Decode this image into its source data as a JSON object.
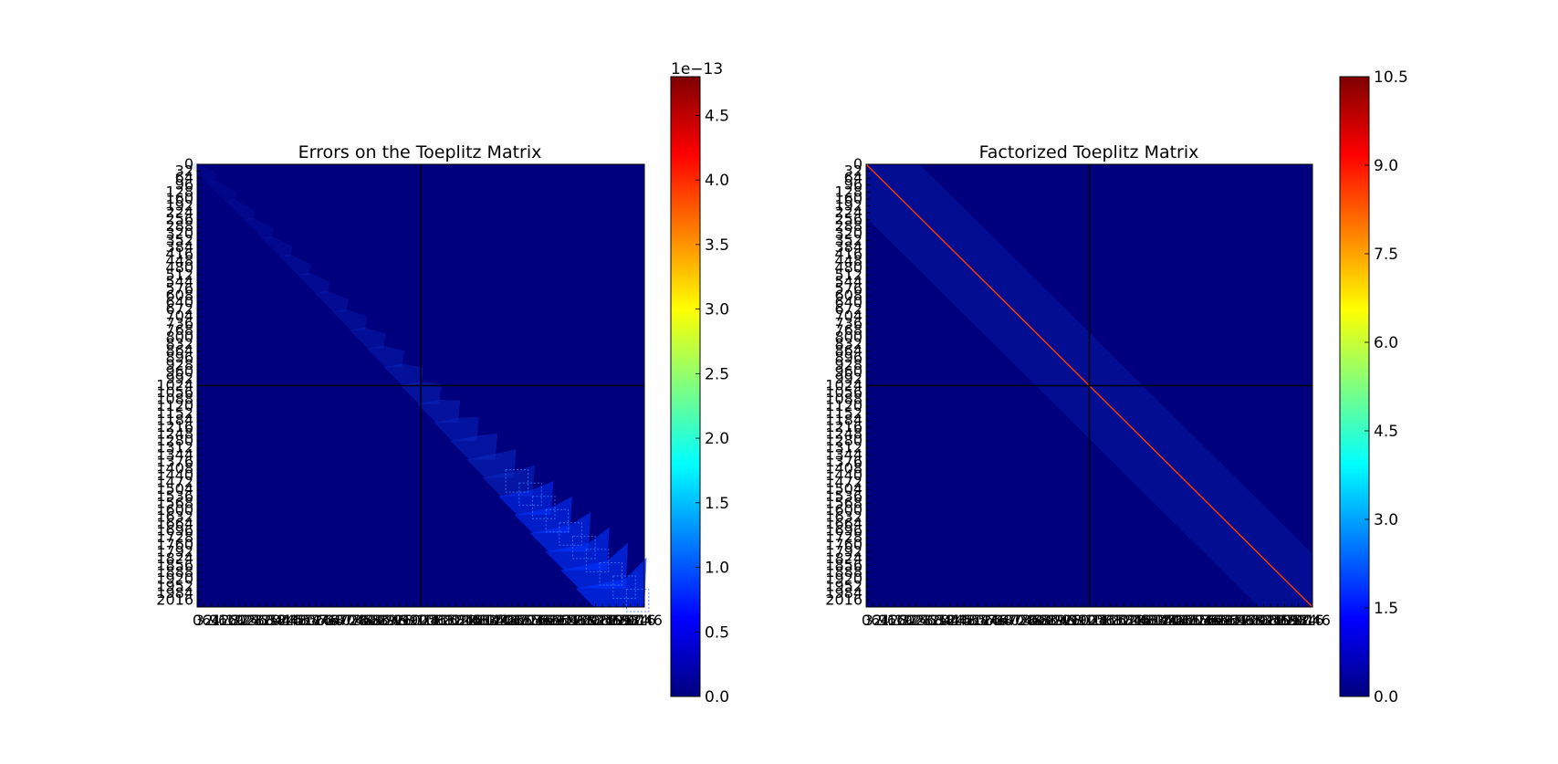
{
  "chart_data": [
    {
      "type": "heatmap",
      "title": "Errors on the Toeplitz Matrix",
      "matrix_size": 2048,
      "x_tick_labels": [
        "0",
        "32",
        "64",
        "96",
        "128",
        "160",
        "192",
        "224",
        "256",
        "288",
        "320",
        "352",
        "384",
        "416",
        "448",
        "480",
        "512",
        "544",
        "576",
        "608",
        "640",
        "672",
        "704",
        "736",
        "768",
        "800",
        "832",
        "864",
        "896",
        "928",
        "960",
        "992",
        "1024",
        "1056",
        "1088",
        "1120",
        "1152",
        "1184",
        "1216",
        "1248",
        "1280",
        "1312",
        "1344",
        "1376",
        "1408",
        "1440",
        "1472",
        "1504",
        "1536",
        "1568",
        "1600",
        "1632",
        "1664",
        "1696",
        "1728",
        "1760",
        "1792",
        "1824",
        "1856",
        "1888",
        "1920",
        "1952",
        "1984",
        "2016",
        "2046"
      ],
      "y_tick_labels": [
        "0",
        "32",
        "64",
        "96",
        "128",
        "160",
        "192",
        "224",
        "256",
        "288",
        "320",
        "352",
        "384",
        "416",
        "448",
        "480",
        "512",
        "544",
        "576",
        "608",
        "640",
        "672",
        "704",
        "736",
        "768",
        "800",
        "832",
        "864",
        "896",
        "928",
        "960",
        "992",
        "1024",
        "1056",
        "1088",
        "1120",
        "1152",
        "1184",
        "1216",
        "1248",
        "1280",
        "1312",
        "1344",
        "1376",
        "1408",
        "1440",
        "1472",
        "1504",
        "1536",
        "1568",
        "1600",
        "1632",
        "1664",
        "1696",
        "1728",
        "1760",
        "1792",
        "1824",
        "1856",
        "1888",
        "1920",
        "1952",
        "1984",
        "2016"
      ],
      "block_divider": 1024,
      "colorbar": {
        "min": 0.0,
        "max": 4.8,
        "ticks": [
          0.0,
          0.5,
          1.0,
          1.5,
          2.0,
          2.5,
          3.0,
          3.5,
          4.0,
          4.5
        ],
        "tick_labels": [
          "0.0",
          "0.5",
          "1.0",
          "1.5",
          "2.0",
          "2.5",
          "3.0",
          "3.5",
          "4.0",
          "4.5"
        ],
        "offset_label": "1e−13",
        "colormap": "jet"
      },
      "pattern": "small errors along main diagonal band, growing toward the bottom-right corner",
      "grid": false
    },
    {
      "type": "heatmap",
      "title": "Factorized Toeplitz Matrix",
      "matrix_size": 2048,
      "x_tick_labels": [
        "0",
        "32",
        "64",
        "96",
        "128",
        "160",
        "192",
        "224",
        "256",
        "288",
        "320",
        "352",
        "384",
        "416",
        "448",
        "480",
        "512",
        "544",
        "576",
        "608",
        "640",
        "672",
        "704",
        "736",
        "768",
        "800",
        "832",
        "864",
        "896",
        "928",
        "960",
        "992",
        "1024",
        "1056",
        "1088",
        "1120",
        "1152",
        "1184",
        "1216",
        "1248",
        "1280",
        "1312",
        "1344",
        "1376",
        "1408",
        "1440",
        "1472",
        "1504",
        "1536",
        "1568",
        "1600",
        "1632",
        "1664",
        "1696",
        "1728",
        "1760",
        "1792",
        "1824",
        "1856",
        "1888",
        "1920",
        "1952",
        "1984",
        "2016",
        "2046"
      ],
      "y_tick_labels": [
        "0",
        "32",
        "64",
        "96",
        "128",
        "160",
        "192",
        "224",
        "256",
        "288",
        "320",
        "352",
        "384",
        "416",
        "448",
        "480",
        "512",
        "544",
        "576",
        "608",
        "640",
        "672",
        "704",
        "736",
        "768",
        "800",
        "832",
        "864",
        "896",
        "928",
        "960",
        "992",
        "1024",
        "1056",
        "1088",
        "1120",
        "1152",
        "1184",
        "1216",
        "1248",
        "1280",
        "1312",
        "1344",
        "1376",
        "1408",
        "1440",
        "1472",
        "1504",
        "1536",
        "1568",
        "1600",
        "1632",
        "1664",
        "1696",
        "1728",
        "1760",
        "1792",
        "1824",
        "1856",
        "1888",
        "1920",
        "1952",
        "1984",
        "2016"
      ],
      "block_divider": 1024,
      "diagonal_value": 10.5,
      "colorbar": {
        "min": 0.0,
        "max": 10.5,
        "ticks": [
          0.0,
          1.5,
          3.0,
          4.5,
          6.0,
          7.5,
          9.0,
          10.5
        ],
        "tick_labels": [
          "0.0",
          "1.5",
          "3.0",
          "4.5",
          "6.0",
          "7.5",
          "9.0",
          "10.5"
        ],
        "offset_label": "",
        "colormap": "jet"
      },
      "pattern": "bright main diagonal (max value), near-zero elsewhere",
      "grid": false
    }
  ],
  "colors": {
    "jet": [
      "#00007f",
      "#0000ff",
      "#007fff",
      "#00ffff",
      "#7fff7f",
      "#ffff00",
      "#ff7f00",
      "#ff0000",
      "#7f0000"
    ],
    "divider": "#000000",
    "diagonal": "#ff3a00"
  }
}
